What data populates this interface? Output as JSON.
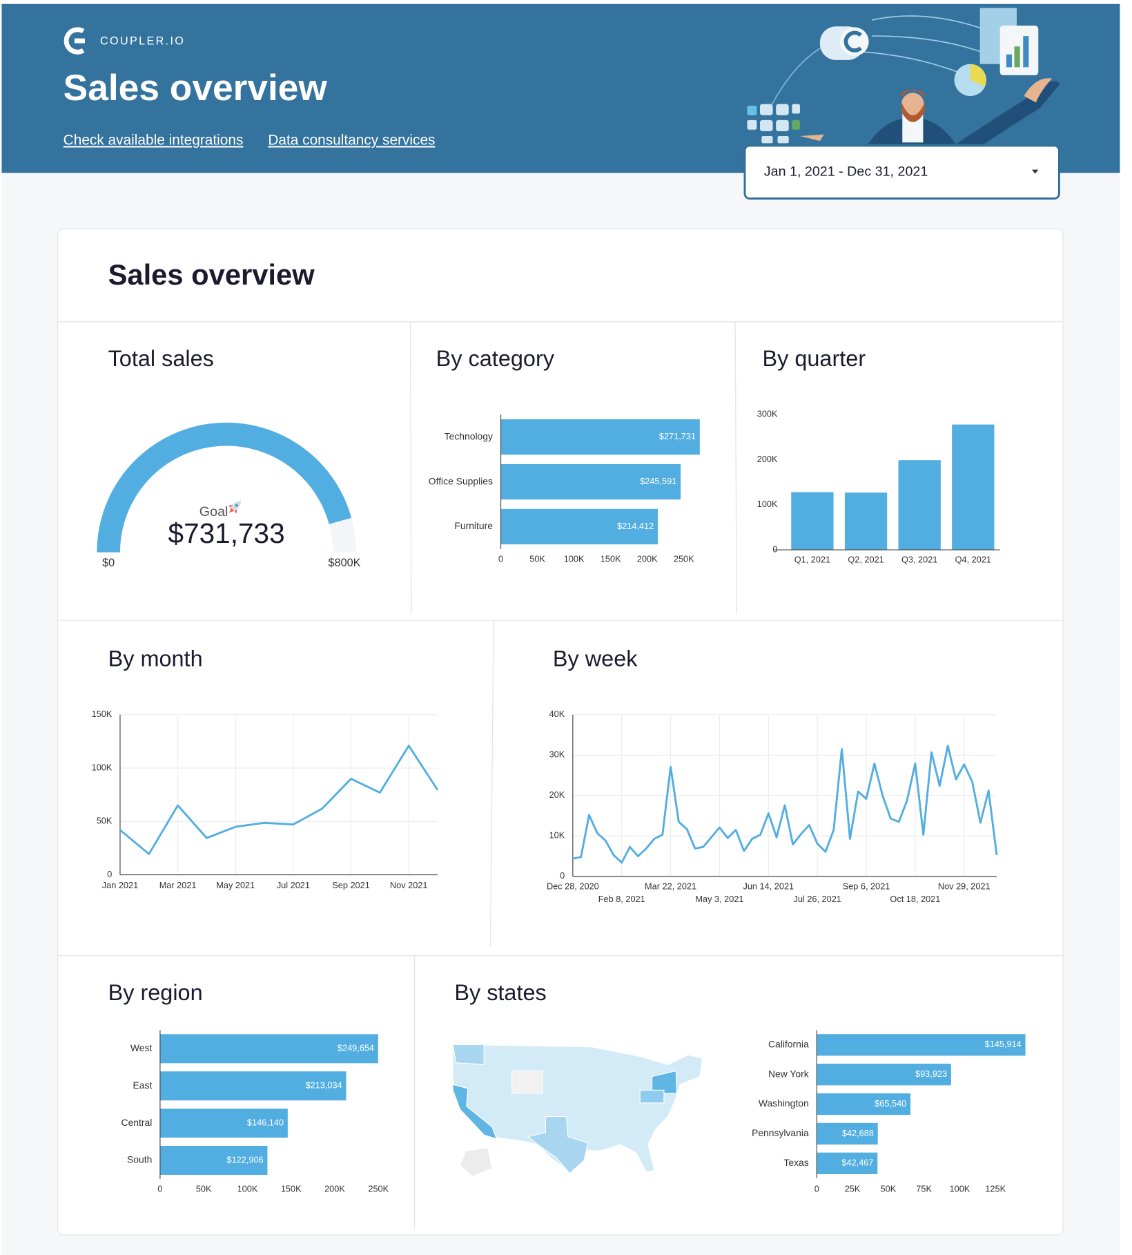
{
  "header": {
    "logo": "COUPLER.IO",
    "title": "Sales overview",
    "links": [
      "Check available integrations",
      "Data consultancy services"
    ],
    "date_range": "Jan 1, 2021 - Dec 31, 2021"
  },
  "section_title": "Sales overview",
  "chart_data": [
    {
      "type": "gauge",
      "title": "Total sales",
      "label": "Goal",
      "value": 731733,
      "value_label": "$731,733",
      "lim": [
        0,
        800000
      ],
      "ticks": [
        {
          "value": 0,
          "label": "$0"
        },
        {
          "value": 800000,
          "label": "$800K"
        }
      ],
      "color": "#52aee0"
    },
    {
      "type": "hbar",
      "title": "By category",
      "categories": [
        "Technology",
        "Office Supplies",
        "Furniture"
      ],
      "values": [
        271731,
        245591,
        214412
      ],
      "value_labels": [
        "$271,731",
        "$245,591",
        "$214,412"
      ],
      "color": "#52aee0",
      "xlim": [
        0,
        272000
      ],
      "xticks": [
        0,
        {
          "value": 50000,
          "label": "50K"
        },
        {
          "value": 100000,
          "label": "100K"
        },
        {
          "value": 150000,
          "label": "150K"
        },
        {
          "value": 200000,
          "label": "200K"
        },
        {
          "value": 250000,
          "label": "250K"
        }
      ]
    },
    {
      "type": "vbar",
      "title": "By quarter",
      "categories": [
        "Q1, 2021",
        "Q2, 2021",
        "Q3, 2021",
        "Q4, 2021"
      ],
      "values": [
        128000,
        127000,
        199000,
        278000
      ],
      "color": "#52aee0",
      "ylim": [
        0,
        300000
      ],
      "yticks": [
        0,
        {
          "value": 100000,
          "label": "100K"
        },
        {
          "value": 200000,
          "label": "200K"
        },
        {
          "value": 300000,
          "label": "300K"
        }
      ]
    },
    {
      "type": "line",
      "title": "By month",
      "categories": [
        "Jan 2021",
        null,
        "Mar 2021",
        null,
        "May 2021",
        null,
        "Jul 2021",
        null,
        "Sep 2021",
        null,
        "Nov 2021",
        null
      ],
      "values": [
        42000,
        19500,
        65000,
        34500,
        45000,
        48700,
        47200,
        62000,
        90000,
        77000,
        121000,
        79500
      ],
      "color": "#52aee0",
      "ylim": [
        0,
        150000
      ],
      "yticks": [
        0,
        {
          "value": 50000,
          "label": "50K"
        },
        {
          "value": 100000,
          "label": "100K"
        },
        {
          "value": 150000,
          "label": "150K"
        }
      ],
      "grid": true
    },
    {
      "type": "line",
      "title": "By week",
      "categories": [
        "Dec 28, 2020",
        null,
        null,
        null,
        null,
        null,
        "Feb 8, 2021",
        null,
        null,
        null,
        null,
        null,
        "Mar 22, 2021",
        null,
        null,
        null,
        null,
        null,
        "May 3, 2021",
        null,
        null,
        null,
        null,
        null,
        "Jun 14, 2021",
        null,
        null,
        null,
        null,
        null,
        "Jul 26, 2021",
        null,
        null,
        null,
        null,
        null,
        "Sep 6, 2021",
        null,
        null,
        null,
        null,
        null,
        "Oct 18, 2021",
        null,
        null,
        null,
        null,
        null,
        "Nov 29, 2021",
        null,
        null,
        null,
        null
      ],
      "values": [
        4400,
        4800,
        15200,
        10700,
        8900,
        5300,
        3400,
        7300,
        5000,
        6900,
        9300,
        10300,
        27100,
        13500,
        11700,
        6900,
        7300,
        9700,
        12100,
        9500,
        11500,
        6300,
        9300,
        10300,
        15600,
        9700,
        17600,
        7900,
        10500,
        12700,
        8100,
        6100,
        11500,
        31500,
        9300,
        21000,
        19200,
        27900,
        20000,
        14300,
        13500,
        18800,
        27900,
        10300,
        30700,
        22400,
        32300,
        24000,
        27700,
        23400,
        13300,
        21200,
        5300
      ],
      "color": "#52aee0",
      "ylim": [
        0,
        40000
      ],
      "yticks": [
        0,
        {
          "value": 10000,
          "label": "10K"
        },
        {
          "value": 20000,
          "label": "20K"
        },
        {
          "value": 30000,
          "label": "30K"
        },
        {
          "value": 40000,
          "label": "40K"
        }
      ],
      "grid": true
    },
    {
      "type": "hbar",
      "title": "By region",
      "categories": [
        "West",
        "East",
        "Central",
        "South"
      ],
      "values": [
        249654,
        213034,
        146140,
        122906
      ],
      "value_labels": [
        "$249,654",
        "$213,034",
        "$146,140",
        "$122,906"
      ],
      "color": "#52aee0",
      "xlim": [
        0,
        250000
      ],
      "xticks": [
        0,
        {
          "value": 50000,
          "label": "50K"
        },
        {
          "value": 100000,
          "label": "100K"
        },
        {
          "value": 150000,
          "label": "150K"
        },
        {
          "value": 200000,
          "label": "200K"
        },
        {
          "value": 250000,
          "label": "250K"
        }
      ]
    },
    {
      "type": "hbar",
      "title": "By states",
      "categories": [
        "California",
        "New York",
        "Washington",
        "Pennsylvania",
        "Texas"
      ],
      "values": [
        145914,
        93923,
        65540,
        42688,
        42467
      ],
      "value_labels": [
        "$145,914",
        "$93,923",
        "$65,540",
        "$42,688",
        "$42,467"
      ],
      "color": "#52aee0",
      "xlim": [
        0,
        146000
      ],
      "xticks": [
        0,
        {
          "value": 25000,
          "label": "25K"
        },
        {
          "value": 50000,
          "label": "50K"
        },
        {
          "value": 75000,
          "label": "75K"
        },
        {
          "value": 100000,
          "label": "100K"
        },
        {
          "value": 125000,
          "label": "125K"
        }
      ]
    }
  ]
}
